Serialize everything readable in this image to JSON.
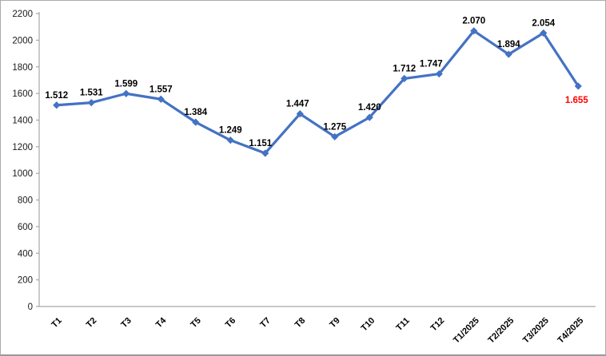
{
  "chart_data": {
    "type": "line",
    "title": "",
    "xlabel": "",
    "ylabel": "",
    "grid": false,
    "legend": "none",
    "ylim": [
      0,
      2200
    ],
    "ytick_step": 200,
    "yticks": [
      0,
      200,
      400,
      600,
      800,
      1000,
      1200,
      1400,
      1600,
      1800,
      2000,
      2200
    ],
    "ytick_labels": [
      "0",
      "200",
      "400",
      "600",
      "800",
      "1000",
      "1200",
      "1400",
      "1600",
      "1800",
      "2000",
      "2200"
    ],
    "categories": [
      "T1",
      "T2",
      "T3",
      "T4",
      "T5",
      "T6",
      "T7",
      "T8",
      "T9",
      "T10",
      "T11",
      "T12",
      "T1/2025",
      "T2/2025",
      "T3/2025",
      "T4/2025"
    ],
    "series": [
      {
        "name": "series-1",
        "values": [
          1512,
          1531,
          1599,
          1557,
          1384,
          1249,
          1151,
          1447,
          1275,
          1420,
          1712,
          1747,
          2070,
          1894,
          2054,
          1655
        ],
        "color": "#4472C4"
      }
    ],
    "points": [
      {
        "category": "T1",
        "value": 1512,
        "label": "1.512",
        "label_position": "above",
        "label_color": "#000000"
      },
      {
        "category": "T2",
        "value": 1531,
        "label": "1.531",
        "label_position": "above",
        "label_color": "#000000"
      },
      {
        "category": "T3",
        "value": 1599,
        "label": "1.599",
        "label_position": "above",
        "label_color": "#000000"
      },
      {
        "category": "T4",
        "value": 1557,
        "label": "1.557",
        "label_position": "above",
        "label_color": "#000000"
      },
      {
        "category": "T5",
        "value": 1384,
        "label": "1.384",
        "label_position": "above",
        "label_color": "#000000"
      },
      {
        "category": "T6",
        "value": 1249,
        "label": "1.249",
        "label_position": "above",
        "label_color": "#000000"
      },
      {
        "category": "T7",
        "value": 1151,
        "label": "1.151",
        "label_position": "above",
        "label_color": "#000000",
        "label_dx": -6
      },
      {
        "category": "T8",
        "value": 1447,
        "label": "1.447",
        "label_position": "above",
        "label_color": "#000000",
        "label_dx": -3
      },
      {
        "category": "T9",
        "value": 1275,
        "label": "1.275",
        "label_position": "above",
        "label_color": "#000000"
      },
      {
        "category": "T10",
        "value": 1420,
        "label": "1.420",
        "label_position": "above",
        "label_color": "#000000"
      },
      {
        "category": "T11",
        "value": 1712,
        "label": "1.712",
        "label_position": "above",
        "label_color": "#000000"
      },
      {
        "category": "T12",
        "value": 1747,
        "label": "1.747",
        "label_position": "above",
        "label_color": "#000000",
        "label_dx": -10
      },
      {
        "category": "T1/2025",
        "value": 2070,
        "label": "2.070",
        "label_position": "above",
        "label_color": "#000000"
      },
      {
        "category": "T2/2025",
        "value": 1894,
        "label": "1.894",
        "label_position": "above",
        "label_color": "#000000"
      },
      {
        "category": "T3/2025",
        "value": 2054,
        "label": "2.054",
        "label_position": "above",
        "label_color": "#000000"
      },
      {
        "category": "T4/2025",
        "value": 1655,
        "label": "1.655",
        "label_position": "below",
        "label_color": "#FF0000",
        "label_dx": -2
      }
    ],
    "colors": {
      "line": "#4472C4",
      "marker": "#4472C4",
      "axis": "#A6A6A6",
      "tick_label": "#1a1a1a",
      "category_label": "#000000",
      "data_label": "#000000",
      "highlight_label": "#FF0000"
    },
    "marker_shape": "diamond"
  }
}
